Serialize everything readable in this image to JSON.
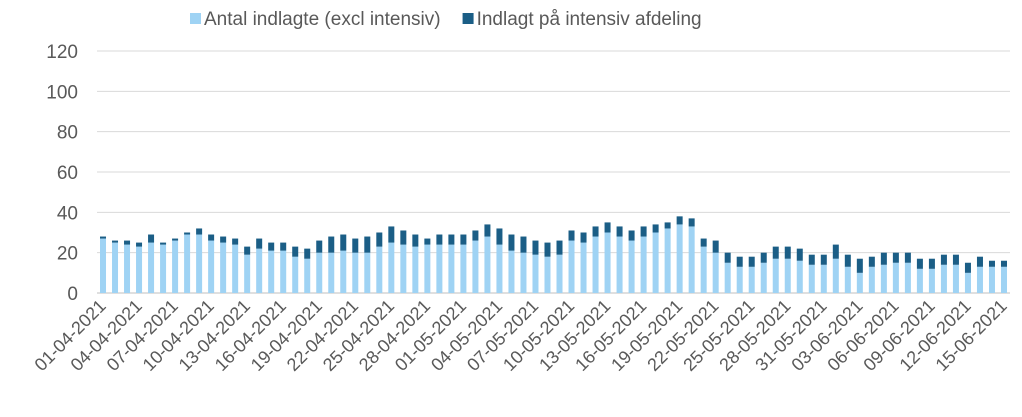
{
  "chart_data": {
    "type": "stacked_bar",
    "categories": [
      "01-04-2021",
      null,
      null,
      "04-04-2021",
      null,
      null,
      "07-04-2021",
      null,
      null,
      "10-04-2021",
      null,
      null,
      "13-04-2021",
      null,
      null,
      "16-04-2021",
      null,
      null,
      "19-04-2021",
      null,
      null,
      "22-04-2021",
      null,
      null,
      "25-04-2021",
      null,
      null,
      "28-04-2021",
      null,
      null,
      "01-05-2021",
      null,
      null,
      "04-05-2021",
      null,
      null,
      "07-05-2021",
      null,
      null,
      "10-05-2021",
      null,
      null,
      "13-05-2021",
      null,
      null,
      "16-05-2021",
      null,
      null,
      "19-05-2021",
      null,
      null,
      "22-05-2021",
      null,
      null,
      "25-05-2021",
      null,
      null,
      "28-05-2021",
      null,
      null,
      "31-05-2021",
      null,
      null,
      "03-06-2021",
      null,
      null,
      "06-06-2021",
      null,
      null,
      "09-06-2021",
      null,
      null,
      "12-06-2021",
      null,
      null,
      "15-06-2021"
    ],
    "series": [
      {
        "name": "Antal indlagte (excl intensiv)",
        "color": "#9fd3f4",
        "values": [
          27,
          25,
          24,
          23,
          25,
          24,
          26,
          29,
          29,
          26,
          25,
          24,
          19,
          22,
          21,
          21,
          18,
          17,
          20,
          20,
          21,
          20,
          20,
          23,
          25,
          24,
          23,
          24,
          24,
          24,
          24,
          26,
          28,
          24,
          21,
          20,
          19,
          18,
          19,
          26,
          25,
          28,
          30,
          28,
          26,
          28,
          30,
          32,
          34,
          33,
          23,
          20,
          15,
          13,
          13,
          15,
          17,
          17,
          16,
          14,
          14,
          17,
          13,
          10,
          13,
          14,
          15,
          15,
          12,
          12,
          14,
          14,
          10,
          13,
          13,
          13
        ]
      },
      {
        "name": "Indlagt på intensiv afdeling",
        "color": "#1b5e86",
        "values": [
          1,
          1,
          2,
          2,
          4,
          1,
          1,
          1,
          3,
          3,
          3,
          3,
          4,
          5,
          4,
          4,
          5,
          5,
          6,
          8,
          8,
          7,
          8,
          7,
          8,
          7,
          6,
          3,
          5,
          5,
          5,
          5,
          6,
          8,
          8,
          8,
          7,
          7,
          7,
          5,
          5,
          5,
          5,
          5,
          5,
          5,
          4,
          3,
          4,
          4,
          4,
          6,
          5,
          5,
          5,
          5,
          6,
          6,
          6,
          5,
          5,
          7,
          6,
          7,
          5,
          6,
          5,
          5,
          5,
          5,
          5,
          5,
          5,
          5,
          3,
          3
        ]
      }
    ],
    "ylim": [
      0,
      120
    ],
    "yticks": [
      0,
      20,
      40,
      60,
      80,
      100,
      120
    ],
    "grid": true,
    "legend": "top"
  }
}
